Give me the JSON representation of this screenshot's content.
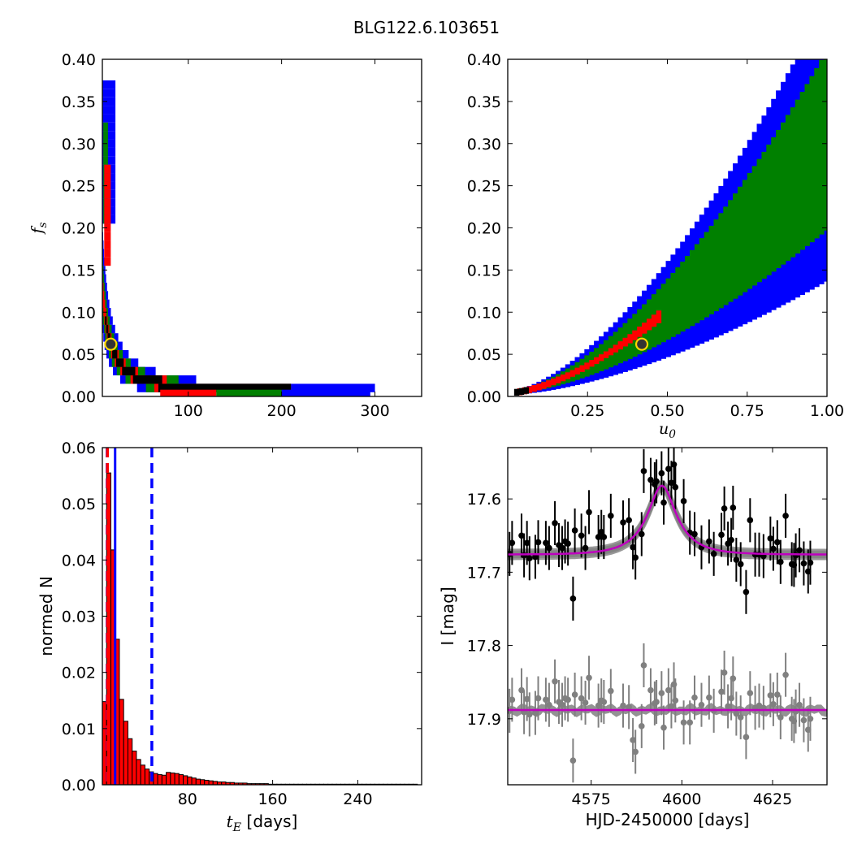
{
  "figure": {
    "title": "BLG122.6.103651"
  },
  "colors": {
    "outer": "#0000ff",
    "middle": "#008000",
    "inner": "#ff0000",
    "core": "#000000",
    "best_fill": "#333333",
    "best_ring": "#ffd700",
    "model": "#bf00bf",
    "spread": "#808080"
  },
  "chart_data": [
    {
      "id": "fs_vs_tE",
      "type": "heatmap",
      "xlabel": "",
      "ylabel": "f_s",
      "xlim": [
        8,
        350
      ],
      "ylim": [
        0,
        0.4
      ],
      "xticks": [
        100,
        200,
        300
      ],
      "xticklabels": [
        "100",
        "200",
        "300"
      ],
      "yticks": [
        0,
        0.05,
        0.1,
        0.15,
        0.2,
        0.25,
        0.3,
        0.35,
        0.4
      ],
      "yticklabels": [
        "0.00",
        "0.05",
        "0.10",
        "0.15",
        "0.20",
        "0.25",
        "0.30",
        "0.35",
        "0.40"
      ],
      "ridge": {
        "model": "fs = 1.05 / tE",
        "levels": [
          "blue",
          "green",
          "red",
          "black"
        ]
      },
      "tail": [
        {
          "level": "blue",
          "x0": 200,
          "x1": 295,
          "y1": 0.004
        },
        {
          "level": "green",
          "x0": 130,
          "x1": 200,
          "y1": 0.004
        },
        {
          "level": "red",
          "x0": 70,
          "x1": 130,
          "y1": 0.004
        }
      ],
      "best_fit": {
        "x": 17,
        "y": 0.062
      }
    },
    {
      "id": "fs_vs_u0",
      "type": "heatmap",
      "xlabel": "u_0",
      "ylabel": "",
      "xlim": [
        0,
        1.0
      ],
      "ylim": [
        0,
        0.4
      ],
      "xticks": [
        0.25,
        0.5,
        0.75,
        1.0
      ],
      "xticklabels": [
        "0.25",
        "0.50",
        "0.75",
        "1.00"
      ],
      "yticks": [
        0,
        0.05,
        0.1,
        0.15,
        0.2,
        0.25,
        0.3,
        0.35,
        0.4
      ],
      "yticklabels": [
        "0.00",
        "0.05",
        "0.10",
        "0.15",
        "0.20",
        "0.25",
        "0.30",
        "0.35",
        "0.40"
      ],
      "ridge": {
        "model": "fs = 0.30 * u0^1.6",
        "u0_range": [
          0.02,
          1.0
        ]
      },
      "best_fit": {
        "x": 0.42,
        "y": 0.062
      }
    },
    {
      "id": "tE_histogram",
      "type": "bar",
      "xlabel": "t_E  [days]",
      "ylabel": "normed N",
      "xlim": [
        0,
        300
      ],
      "ylim": [
        0,
        0.06
      ],
      "xticks": [
        80,
        160,
        240
      ],
      "xticklabels": [
        "80",
        "160",
        "240"
      ],
      "yticks": [
        0,
        0.01,
        0.02,
        0.03,
        0.04,
        0.05,
        0.06
      ],
      "yticklabels": [
        "0.00",
        "0.01",
        "0.02",
        "0.03",
        "0.04",
        "0.05",
        "0.06"
      ],
      "bin_width": 4,
      "values": [
        0.0148,
        0.0555,
        0.0418,
        0.0259,
        0.0152,
        0.0113,
        0.0082,
        0.006,
        0.0045,
        0.0035,
        0.0028,
        0.0023,
        0.002,
        0.0018,
        0.0017,
        0.0022,
        0.0021,
        0.002,
        0.0018,
        0.0016,
        0.0014,
        0.0012,
        0.001,
        0.0009,
        0.0008,
        0.0007,
        0.0006,
        0.0005,
        0.0005,
        0.0004,
        0.0004,
        0.0003,
        0.0003,
        0.0003,
        0.0002,
        0.0002,
        0.0002,
        0.0002,
        0.0002,
        0.0001,
        0.0001,
        0.0001,
        0.0001,
        0.0001,
        0.0001,
        0.0001,
        0.0001,
        0.0001,
        0.0001,
        0.0001,
        0.0001,
        0.0001,
        0.0001,
        0.0001,
        0.0001,
        0.0001,
        0.0001,
        0.0001,
        0.0001,
        0.0001,
        0.0001,
        0.0001,
        0.0001,
        0.0001,
        0.0001,
        0.0001,
        0.0001,
        0.0001,
        0.0001,
        0.0001,
        0.0001,
        0.0001,
        0.0001,
        0.0001
      ],
      "markers": [
        {
          "x": 4.5,
          "style": "dashed",
          "color": "blue"
        },
        {
          "x": 4.8,
          "style": "dashed",
          "color": "red"
        },
        {
          "x": 12,
          "style": "solid",
          "color": "blue"
        },
        {
          "x": 46.5,
          "style": "dashed",
          "color": "blue"
        }
      ]
    },
    {
      "id": "light_curve",
      "type": "scatter",
      "xlabel": "HJD-2450000 [days]",
      "ylabel": "I [mag]",
      "xlim": [
        4552,
        4640
      ],
      "ylim": [
        17.99,
        17.53
      ],
      "y_inverted": true,
      "xticks": [
        4575,
        4600,
        4625
      ],
      "xticklabels": [
        "4575",
        "4600",
        "4625"
      ],
      "yticks": [
        17.6,
        17.7,
        17.8,
        17.9
      ],
      "yticklabels": [
        "17.6",
        "17.7",
        "17.8",
        "17.9"
      ],
      "model": {
        "baseline": 17.676,
        "peak": 17.582,
        "t0": 4594.5,
        "tE": 9.5,
        "u0": 0.42
      },
      "residual_model": {
        "baseline": 17.888
      },
      "series": [
        {
          "x": [
            4552.5,
            4553.2,
            4555.8,
            4556.5,
            4557.3,
            4558.0,
            4559.6,
            4560.4,
            4562.5,
            4563.4,
            4565.0,
            4566.1,
            4567.0,
            4567.8,
            4568.6,
            4570.0,
            4570.5,
            4572.3,
            4573.4,
            4574.4,
            4577.0,
            4577.8,
            4578.5,
            4580.4,
            4583.8,
            4585.4,
            4586.5,
            4587.2,
            4588.9,
            4589.5,
            4591.4,
            4592.5,
            4593.0,
            4594.4,
            4595.0,
            4596.3,
            4597.1,
            4597.8,
            4598.2,
            4600.5,
            4602.2,
            4603.5,
            4605.4,
            4607.5,
            4608.8,
            4610.9,
            4611.7,
            4612.7,
            4613.6,
            4614.1,
            4615.0,
            4616.2,
            4617.7,
            4618.8,
            4620.2,
            4621.3,
            4622.5,
            4624.4,
            4625.2,
            4626.3,
            4627.2,
            4628.6,
            4630.3,
            4630.9,
            4631.4,
            4632.4,
            4633.6,
            4634.8,
            4635.4
          ],
          "y": [
            17.675,
            17.66,
            17.65,
            17.677,
            17.66,
            17.681,
            17.679,
            17.659,
            17.66,
            17.667,
            17.633,
            17.663,
            17.667,
            17.658,
            17.661,
            17.736,
            17.643,
            17.65,
            17.667,
            17.618,
            17.652,
            17.645,
            17.652,
            17.623,
            17.632,
            17.629,
            17.666,
            17.68,
            17.648,
            17.562,
            17.574,
            17.58,
            17.576,
            17.565,
            17.605,
            17.559,
            17.578,
            17.553,
            17.584,
            17.603,
            17.646,
            17.648,
            17.666,
            17.658,
            17.675,
            17.649,
            17.613,
            17.661,
            17.656,
            17.612,
            17.683,
            17.689,
            17.727,
            17.629,
            17.676,
            17.676,
            17.678,
            17.654,
            17.668,
            17.659,
            17.686,
            17.623,
            17.689,
            17.69,
            17.677,
            17.67,
            17.688,
            17.699,
            17.687
          ],
          "yerr": 0.03
        },
        {
          "x": [
            4552.5,
            4553.2,
            4555.8,
            4556.5,
            4557.3,
            4558.0,
            4559.6,
            4560.4,
            4562.5,
            4563.4,
            4565.0,
            4566.1,
            4567.0,
            4567.8,
            4568.6,
            4570.0,
            4570.5,
            4572.3,
            4573.4,
            4574.4,
            4577.0,
            4577.8,
            4578.5,
            4580.4,
            4583.8,
            4585.4,
            4586.5,
            4587.2,
            4588.9,
            4589.5,
            4591.4,
            4592.5,
            4593.0,
            4594.4,
            4595.0,
            4596.3,
            4597.1,
            4597.8,
            4598.2,
            4600.5,
            4602.2,
            4603.5,
            4605.4,
            4607.5,
            4608.8,
            4610.9,
            4611.7,
            4612.7,
            4613.6,
            4614.1,
            4615.0,
            4616.2,
            4617.7,
            4618.8,
            4620.2,
            4621.3,
            4622.5,
            4624.4,
            4625.2,
            4626.3,
            4627.2,
            4628.6,
            4630.3,
            4630.9,
            4631.4,
            4632.4,
            4633.6,
            4634.8,
            4635.4
          ],
          "y": [
            17.889,
            17.874,
            17.861,
            17.891,
            17.873,
            17.894,
            17.892,
            17.872,
            17.874,
            17.881,
            17.849,
            17.877,
            17.881,
            17.872,
            17.874,
            17.957,
            17.867,
            17.872,
            17.878,
            17.844,
            17.882,
            17.875,
            17.877,
            17.862,
            17.882,
            17.884,
            17.929,
            17.945,
            17.91,
            17.827,
            17.861,
            17.879,
            17.877,
            17.865,
            17.912,
            17.861,
            17.883,
            17.853,
            17.875,
            17.905,
            17.905,
            17.871,
            17.881,
            17.871,
            17.889,
            17.863,
            17.837,
            17.883,
            17.872,
            17.845,
            17.893,
            17.898,
            17.925,
            17.865,
            17.885,
            17.882,
            17.885,
            17.868,
            17.88,
            17.867,
            17.898,
            17.84,
            17.9,
            17.903,
            17.89,
            17.881,
            17.902,
            17.915,
            17.9
          ],
          "yerr": 0.03
        }
      ]
    }
  ]
}
